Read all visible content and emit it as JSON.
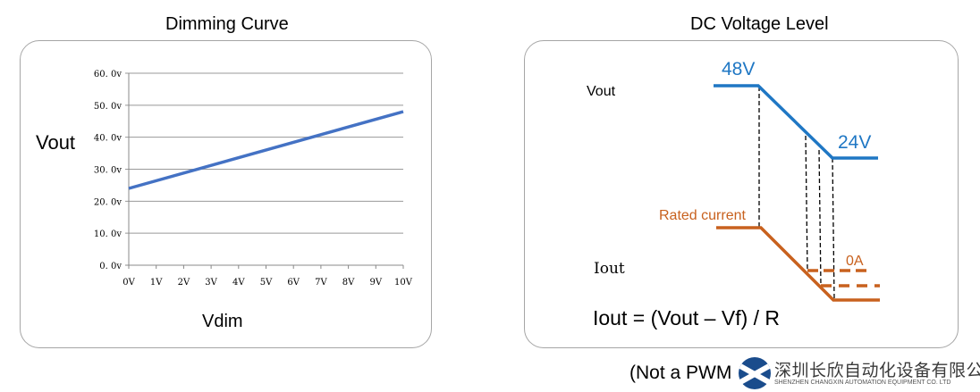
{
  "left": {
    "title": "Dimming Curve",
    "chart_data": {
      "type": "line",
      "title": "Dimming Curve",
      "xlabel": "Vdim",
      "ylabel": "Vout",
      "x_ticks": [
        "0V",
        "1V",
        "2V",
        "3V",
        "4V",
        "5V",
        "6V",
        "7V",
        "8V",
        "9V",
        "10V"
      ],
      "y_ticks": [
        "0. 0v",
        "10. 0v",
        "20. 0v",
        "30. 0v",
        "40. 0v",
        "50. 0v",
        "60. 0v"
      ],
      "xlim": [
        0,
        10
      ],
      "ylim": [
        0,
        60
      ],
      "grid": true,
      "series": [
        {
          "x": [
            0,
            10
          ],
          "y": [
            24,
            48
          ],
          "color": "#4472c4"
        }
      ]
    }
  },
  "right": {
    "title": "DC Voltage Level",
    "vout_label": "Vout",
    "iout_label": "Iout",
    "v_high": "48V",
    "v_low": "24V",
    "rated_current": "Rated current",
    "zero_current": "0A",
    "formula": "Iout = (Vout – Vf) / R",
    "colors": {
      "voltage": "#1f77c4",
      "current": "#c8611e"
    }
  },
  "footer": {
    "note": "(Not a PWM",
    "logo_cn": "深圳长欣自动化设备有限公司",
    "logo_en": "SHENZHEN CHANGXIN AUTOMATION EQUIPMENT CO. LTD"
  }
}
